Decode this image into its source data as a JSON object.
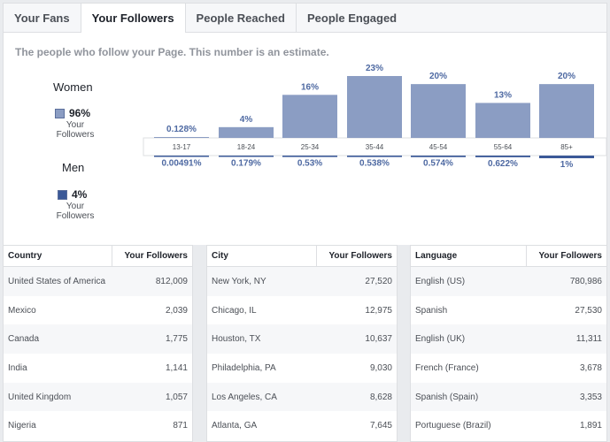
{
  "tabs": [
    "Your Fans",
    "Your Followers",
    "People Reached",
    "People Engaged"
  ],
  "active_tab": "Your Followers",
  "description": "The people who follow your Page. This number is an estimate.",
  "women": {
    "title": "Women",
    "pct": "96%",
    "sub": "Your Followers",
    "color": "#8b9dc3"
  },
  "men": {
    "title": "Men",
    "pct": "4%",
    "sub": "Your Followers",
    "color": "#3b5998"
  },
  "chart_data": {
    "type": "bar",
    "categories": [
      "13-17",
      "18-24",
      "25-34",
      "35-44",
      "45-54",
      "55-64",
      "85+"
    ],
    "series": [
      {
        "name": "Women",
        "values": [
          0.128,
          4,
          16,
          23,
          20,
          13,
          20
        ],
        "labels": [
          "0.128%",
          "4%",
          "16%",
          "23%",
          "20%",
          "13%",
          "20%"
        ]
      },
      {
        "name": "Men",
        "values": [
          0.00491,
          0.179,
          0.53,
          0.538,
          0.574,
          0.622,
          1
        ],
        "labels": [
          "0.00491%",
          "0.179%",
          "0.53%",
          "0.538%",
          "0.574%",
          "0.622%",
          "1%"
        ]
      }
    ]
  },
  "tables": [
    {
      "header": [
        "Country",
        "Your Followers"
      ],
      "rows": [
        [
          "United States of America",
          "812,009"
        ],
        [
          "Mexico",
          "2,039"
        ],
        [
          "Canada",
          "1,775"
        ],
        [
          "India",
          "1,141"
        ],
        [
          "United Kingdom",
          "1,057"
        ],
        [
          "Nigeria",
          "871"
        ]
      ]
    },
    {
      "header": [
        "City",
        "Your Followers"
      ],
      "rows": [
        [
          "New York, NY",
          "27,520"
        ],
        [
          "Chicago, IL",
          "12,975"
        ],
        [
          "Houston, TX",
          "10,637"
        ],
        [
          "Philadelphia, PA",
          "9,030"
        ],
        [
          "Los Angeles, CA",
          "8,628"
        ],
        [
          "Atlanta, GA",
          "7,645"
        ]
      ]
    },
    {
      "header": [
        "Language",
        "Your Followers"
      ],
      "rows": [
        [
          "English (US)",
          "780,986"
        ],
        [
          "Spanish",
          "27,530"
        ],
        [
          "English (UK)",
          "11,311"
        ],
        [
          "French (France)",
          "3,678"
        ],
        [
          "Spanish (Spain)",
          "3,353"
        ],
        [
          "Portuguese (Brazil)",
          "1,891"
        ]
      ]
    }
  ]
}
